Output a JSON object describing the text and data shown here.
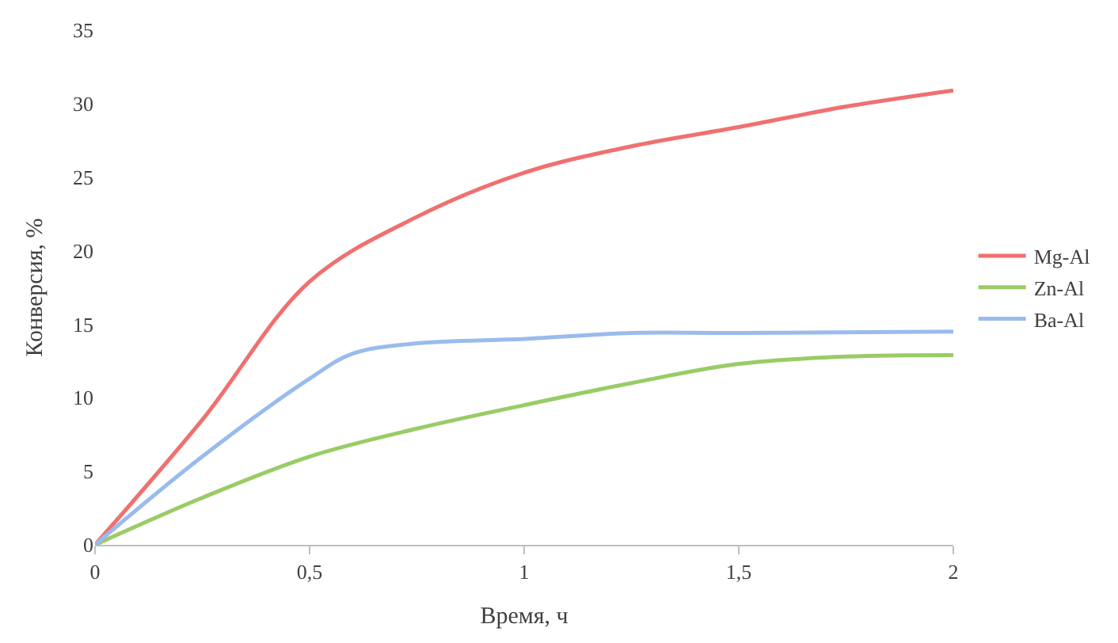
{
  "chart_data": {
    "type": "line",
    "xlabel": "Время, ч",
    "ylabel": "Конверсия, %",
    "xlim": [
      0,
      2
    ],
    "xticks": [
      0,
      {
        "value": 0.5,
        "label": "0,5"
      },
      1,
      {
        "value": 1.5,
        "label": "1,5"
      },
      2
    ],
    "ylim": [
      0,
      35
    ],
    "yticks": [
      0,
      5,
      10,
      15,
      20,
      25,
      30,
      35
    ],
    "grid": false,
    "legend": "right",
    "marker": "none",
    "line_style": "solid",
    "series": [
      {
        "name": "Mg-Al",
        "color": "#f07070",
        "x": [
          0,
          0.25,
          0.5,
          0.75,
          1,
          1.25,
          1.5,
          1.75,
          2
        ],
        "values": [
          0,
          8.5,
          17.9,
          22.3,
          25.3,
          27.1,
          28.4,
          29.8,
          30.9
        ]
      },
      {
        "name": "Zn-Al",
        "color": "#99cc66",
        "x": [
          0,
          0.25,
          0.5,
          0.75,
          1,
          1.25,
          1.5,
          1.75,
          2
        ],
        "values": [
          0,
          3.2,
          6,
          7.9,
          9.5,
          11,
          12.3,
          12.8,
          12.9
        ]
      },
      {
        "name": "Ba-Al",
        "color": "#99bbee",
        "x": [
          0,
          0.25,
          0.5,
          0.6,
          0.75,
          1,
          1.25,
          1.5,
          2
        ],
        "values": [
          0,
          6,
          11.3,
          13,
          13.7,
          14,
          14.4,
          14.4,
          14.5
        ]
      }
    ]
  }
}
